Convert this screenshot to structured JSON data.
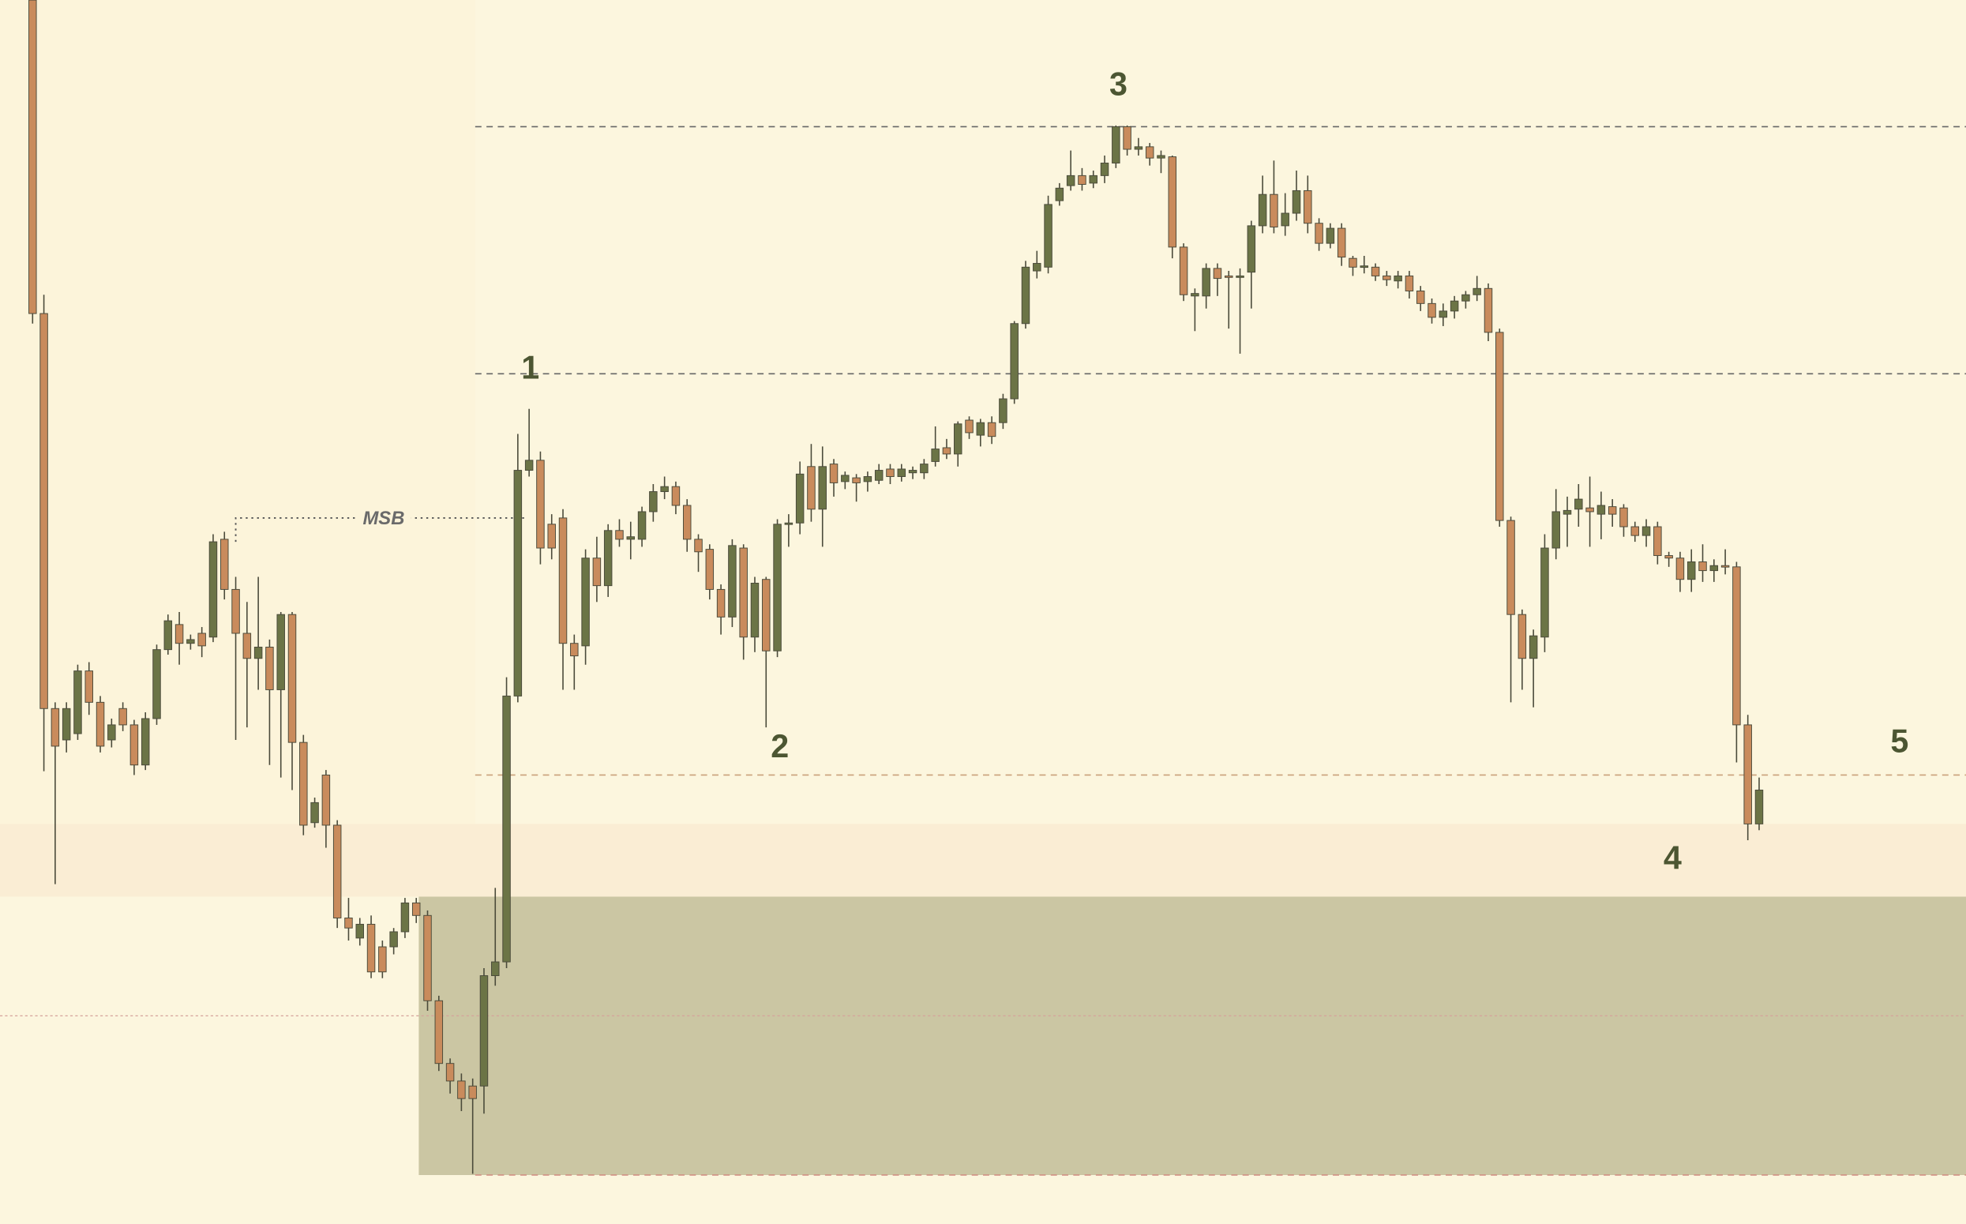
{
  "chart_data": {
    "type": "candlestick",
    "up_color": "#6b7446",
    "down_color": "#c98b5c",
    "ylim": [
      0,
      976
    ],
    "ohlc": [
      [
        976,
        976,
        718,
        726
      ],
      [
        726,
        741,
        361,
        411
      ],
      [
        411,
        416,
        271,
        381
      ],
      [
        386,
        416,
        376,
        411
      ],
      [
        391,
        446,
        386,
        441
      ],
      [
        441,
        448,
        406,
        416
      ],
      [
        416,
        421,
        376,
        381
      ],
      [
        386,
        403,
        380,
        398
      ],
      [
        411,
        416,
        393,
        398
      ],
      [
        398,
        402,
        358,
        366
      ],
      [
        366,
        408,
        362,
        403
      ],
      [
        403,
        462,
        398,
        458
      ],
      [
        458,
        486,
        454,
        481
      ],
      [
        478,
        488,
        446,
        463
      ],
      [
        463,
        470,
        458,
        466
      ],
      [
        471,
        476,
        452,
        461
      ],
      [
        468,
        550,
        464,
        544
      ],
      [
        546,
        552,
        498,
        506
      ],
      [
        506,
        516,
        386,
        471
      ],
      [
        471,
        496,
        396,
        451
      ],
      [
        451,
        516,
        426,
        460
      ],
      [
        460,
        466,
        366,
        426
      ],
      [
        426,
        488,
        356,
        486
      ],
      [
        486,
        488,
        346,
        384
      ],
      [
        384,
        390,
        310,
        318
      ],
      [
        320,
        340,
        316,
        336
      ],
      [
        358,
        362,
        300,
        318
      ],
      [
        318,
        322,
        236,
        244
      ],
      [
        244,
        260,
        226,
        236
      ],
      [
        228,
        244,
        222,
        239
      ],
      [
        239,
        246,
        196,
        201
      ],
      [
        221,
        226,
        196,
        201
      ],
      [
        221,
        236,
        215,
        233
      ],
      [
        233,
        260,
        228,
        256
      ],
      [
        256,
        260,
        240,
        246
      ],
      [
        246,
        250,
        170,
        178
      ],
      [
        178,
        182,
        122,
        128
      ],
      [
        128,
        132,
        104,
        114
      ],
      [
        114,
        120,
        90,
        100
      ],
      [
        110,
        116,
        40,
        100
      ],
      [
        110,
        204,
        88,
        198
      ],
      [
        198,
        268,
        190,
        209
      ],
      [
        209,
        436,
        204,
        421
      ],
      [
        421,
        630,
        416,
        601
      ],
      [
        601,
        650,
        596,
        609
      ],
      [
        609,
        616,
        526,
        539
      ],
      [
        558,
        566,
        530,
        539
      ],
      [
        563,
        570,
        426,
        463
      ],
      [
        463,
        470,
        426,
        453
      ],
      [
        461,
        538,
        446,
        531
      ],
      [
        531,
        548,
        496,
        509
      ],
      [
        509,
        558,
        500,
        553
      ],
      [
        553,
        562,
        540,
        546
      ],
      [
        546,
        560,
        530,
        548
      ],
      [
        546,
        572,
        540,
        568
      ],
      [
        568,
        590,
        560,
        584
      ],
      [
        584,
        596,
        578,
        588
      ],
      [
        588,
        592,
        566,
        573
      ],
      [
        573,
        578,
        536,
        546
      ],
      [
        546,
        550,
        520,
        536
      ],
      [
        538,
        542,
        498,
        506
      ],
      [
        506,
        510,
        470,
        484
      ],
      [
        484,
        546,
        476,
        541
      ],
      [
        539,
        542,
        450,
        468
      ],
      [
        468,
        516,
        456,
        511
      ],
      [
        514,
        516,
        396,
        457
      ],
      [
        457,
        562,
        452,
        558
      ],
      [
        558,
        566,
        540,
        559
      ],
      [
        559,
        608,
        550,
        598
      ],
      [
        604,
        622,
        560,
        570
      ],
      [
        570,
        620,
        540,
        604
      ],
      [
        606,
        610,
        580,
        591
      ],
      [
        592,
        600,
        586,
        597
      ],
      [
        595,
        598,
        576,
        591
      ],
      [
        592,
        600,
        584,
        596
      ],
      [
        593,
        606,
        590,
        601
      ],
      [
        602,
        606,
        590,
        596
      ],
      [
        596,
        606,
        592,
        602
      ],
      [
        599,
        604,
        594,
        601
      ],
      [
        599,
        610,
        594,
        606
      ],
      [
        608,
        636,
        604,
        618
      ],
      [
        619,
        626,
        610,
        614
      ],
      [
        614,
        640,
        604,
        638
      ],
      [
        641,
        644,
        626,
        631
      ],
      [
        629,
        642,
        620,
        639
      ],
      [
        639,
        644,
        622,
        628
      ],
      [
        639,
        662,
        634,
        658
      ],
      [
        658,
        720,
        654,
        718
      ],
      [
        718,
        768,
        714,
        763
      ],
      [
        760,
        776,
        754,
        766
      ],
      [
        763,
        820,
        758,
        813
      ],
      [
        816,
        830,
        812,
        826
      ],
      [
        828,
        856,
        824,
        836
      ],
      [
        836,
        842,
        824,
        829
      ],
      [
        830,
        840,
        826,
        836
      ],
      [
        836,
        852,
        830,
        846
      ],
      [
        846,
        876,
        842,
        875
      ],
      [
        875,
        876,
        852,
        857
      ],
      [
        857,
        866,
        852,
        859
      ],
      [
        859,
        862,
        844,
        850
      ],
      [
        850,
        856,
        838,
        852
      ],
      [
        851,
        852,
        770,
        779
      ],
      [
        779,
        782,
        736,
        741
      ],
      [
        740,
        746,
        712,
        742
      ],
      [
        740,
        766,
        730,
        762
      ],
      [
        762,
        766,
        740,
        754
      ],
      [
        756,
        760,
        714,
        755
      ],
      [
        755,
        762,
        694,
        756
      ],
      [
        759,
        800,
        730,
        796
      ],
      [
        796,
        836,
        790,
        821
      ],
      [
        821,
        848,
        790,
        795
      ],
      [
        796,
        822,
        788,
        806
      ],
      [
        806,
        840,
        800,
        824
      ],
      [
        824,
        836,
        790,
        798
      ],
      [
        798,
        802,
        776,
        782
      ],
      [
        782,
        798,
        778,
        794
      ],
      [
        794,
        798,
        764,
        771
      ],
      [
        770,
        772,
        756,
        763
      ],
      [
        763,
        772,
        758,
        764
      ],
      [
        763,
        766,
        752,
        756
      ],
      [
        756,
        760,
        748,
        753
      ],
      [
        752,
        760,
        746,
        756
      ],
      [
        756,
        760,
        738,
        744
      ],
      [
        744,
        748,
        728,
        734
      ],
      [
        734,
        738,
        718,
        723
      ],
      [
        723,
        734,
        716,
        728
      ],
      [
        728,
        740,
        722,
        736
      ],
      [
        736,
        744,
        730,
        741
      ],
      [
        741,
        756,
        736,
        746
      ],
      [
        746,
        750,
        704,
        711
      ],
      [
        711,
        714,
        556,
        561
      ],
      [
        561,
        564,
        416,
        486
      ],
      [
        486,
        490,
        426,
        451
      ],
      [
        451,
        474,
        412,
        469
      ],
      [
        468,
        550,
        456,
        539
      ],
      [
        539,
        586,
        530,
        568
      ],
      [
        566,
        580,
        540,
        569
      ],
      [
        570,
        590,
        556,
        578
      ],
      [
        571,
        596,
        540,
        568
      ],
      [
        566,
        584,
        546,
        573
      ],
      [
        572,
        578,
        556,
        566
      ],
      [
        571,
        574,
        548,
        556
      ],
      [
        556,
        560,
        544,
        549
      ],
      [
        549,
        562,
        540,
        556
      ],
      [
        556,
        560,
        526,
        533
      ],
      [
        533,
        536,
        524,
        531
      ],
      [
        531,
        536,
        504,
        514
      ],
      [
        514,
        538,
        504,
        528
      ],
      [
        528,
        542,
        512,
        521
      ],
      [
        521,
        530,
        512,
        525
      ],
      [
        525,
        538,
        518,
        524
      ],
      [
        524,
        528,
        368,
        398
      ],
      [
        398,
        406,
        306,
        319
      ],
      [
        319,
        356,
        314,
        346
      ]
    ],
    "levels": [
      875,
      678,
      358,
      39
    ],
    "midline": 166,
    "zones": [
      {
        "low": 261,
        "high": 319
      },
      {
        "low": 39,
        "high": 261
      }
    ],
    "msb": {
      "label": "MSB",
      "value": 563
    },
    "annotations": [
      "1",
      "2",
      "3",
      "4",
      "5"
    ]
  }
}
